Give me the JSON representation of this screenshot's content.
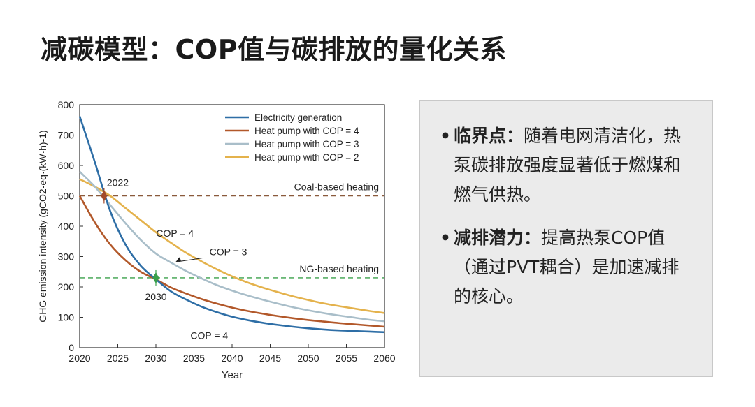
{
  "slide": {
    "title": "减碳模型：COP值与碳排放的量化关系"
  },
  "notes": [
    {
      "key": "临界点：",
      "text": "随着电网清洁化，热泵碳排放强度显著低于燃煤和燃气供热。"
    },
    {
      "key": "减排潜力：",
      "text": "提高热泵COP值（通过PVT耦合）是加速减排的核心。"
    }
  ],
  "chart_data": {
    "type": "line",
    "xlabel": "Year",
    "ylabel": "GHG emission intensity (gCO2-eq·(kW·h)-1)",
    "xlim": [
      2020,
      2060
    ],
    "ylim": [
      0,
      800
    ],
    "xticks": [
      2020,
      2025,
      2030,
      2035,
      2040,
      2045,
      2050,
      2055,
      2060
    ],
    "yticks": [
      0,
      100,
      200,
      300,
      400,
      500,
      600,
      700,
      800
    ],
    "legend_position": "top-right",
    "x": [
      2020,
      2022,
      2024,
      2026,
      2028,
      2030,
      2032,
      2034,
      2036,
      2038,
      2040,
      2042,
      2044,
      2046,
      2048,
      2050,
      2052,
      2054,
      2056,
      2058,
      2060
    ],
    "series": [
      {
        "name": "Electricity generation",
        "color": "#2e6ea6",
        "values": [
          762,
          610,
          450,
          340,
          270,
          225,
          185,
          158,
          135,
          117,
          102,
          91,
          82,
          75,
          69,
          64,
          60,
          57,
          55,
          53,
          51
        ]
      },
      {
        "name": "Heat pump with COP = 4",
        "color": "#b2582a",
        "values": [
          500,
          412,
          340,
          288,
          250,
          225,
          198,
          178,
          160,
          145,
          132,
          121,
          112,
          104,
          97,
          91,
          86,
          81,
          77,
          73,
          69
        ]
      },
      {
        "name": "Heat pump with COP = 3",
        "color": "#a9bec9",
        "values": [
          580,
          530,
          470,
          410,
          355,
          310,
          280,
          252,
          228,
          206,
          188,
          172,
          158,
          145,
          133,
          123,
          114,
          106,
          99,
          92,
          87
        ]
      },
      {
        "name": "Heat pump with COP = 2",
        "color": "#e4b24c",
        "values": [
          555,
          530,
          500,
          460,
          420,
          380,
          345,
          312,
          284,
          258,
          235,
          215,
          198,
          183,
          169,
          157,
          146,
          137,
          129,
          121,
          114
        ]
      }
    ],
    "reference_lines": [
      {
        "label": "Coal-based heating",
        "y": 500,
        "color": "#8a5a3c"
      },
      {
        "label": "NG-based heating",
        "y": 230,
        "color": "#3aa04a"
      }
    ],
    "markers": [
      {
        "label": "2022",
        "x": 2023.2,
        "y": 500,
        "color": "#a24a2a"
      },
      {
        "label": "2030",
        "x": 2030,
        "y": 230,
        "color": "#3aa04a"
      }
    ],
    "annotations": [
      {
        "text": "COP = 4",
        "x": 2031,
        "y": 365
      },
      {
        "text": "COP = 3",
        "x": 2037,
        "y": 305
      },
      {
        "text": "COP = 4",
        "x": 2037,
        "y": 75
      }
    ]
  }
}
